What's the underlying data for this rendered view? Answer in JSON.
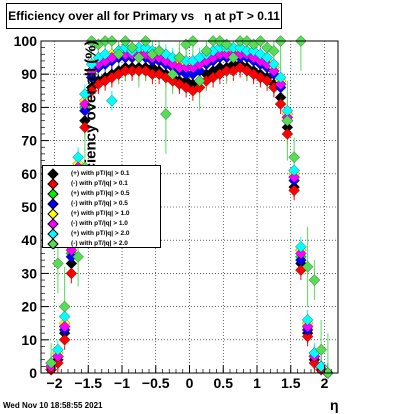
{
  "timestamp": "Wed Nov 10 18:58:55 2021",
  "chart_data": {
    "type": "scatter",
    "title": "Efficiency over all for Primary vs   η at pT > 0.11",
    "xlabel": "η",
    "ylabel": "Efficiency over all (%)",
    "xlim": [
      -2.2,
      2.2
    ],
    "ylim": [
      0,
      100
    ],
    "x_ticks": [
      -2,
      -1.5,
      -1,
      -0.5,
      0,
      0.5,
      1,
      1.5,
      2
    ],
    "x_tick_labels": [
      "−2",
      "−1.5",
      "−1",
      "−0.5",
      "0",
      "0.5",
      "1",
      "1.5",
      "2"
    ],
    "y_ticks": [
      0,
      10,
      20,
      30,
      40,
      50,
      60,
      70,
      80,
      90,
      100
    ],
    "y_tick_labels": [
      "0",
      "10",
      "20",
      "30",
      "40",
      "50",
      "60",
      "70",
      "80",
      "90",
      "100"
    ],
    "grid": true,
    "legend_position": "left-middle",
    "series": [
      {
        "name": "(+) with pT/|q| > 0.1",
        "color": "#000000",
        "x": [
          -2.05,
          -1.95,
          -1.85,
          -1.75,
          -1.65,
          -1.55,
          -1.45,
          -1.35,
          -1.25,
          -1.15,
          -1.05,
          -0.95,
          -0.85,
          -0.75,
          -0.65,
          -0.55,
          -0.45,
          -0.35,
          -0.25,
          -0.15,
          -0.05,
          0.05,
          0.15,
          0.25,
          0.35,
          0.45,
          0.55,
          0.65,
          0.75,
          0.85,
          0.95,
          1.05,
          1.15,
          1.25,
          1.35,
          1.45,
          1.55,
          1.65,
          1.75,
          1.85,
          1.95,
          2.05
        ],
        "y": [
          1,
          4,
          12,
          33,
          58,
          76,
          86,
          88,
          89,
          90,
          91,
          92,
          92,
          92,
          92,
          92,
          91,
          90,
          89,
          88,
          88,
          87,
          88,
          90,
          91,
          92,
          92,
          93,
          93,
          92,
          91,
          90,
          89,
          87,
          83,
          74,
          56,
          33,
          12,
          4,
          1,
          0
        ]
      },
      {
        "name": "(-) with pT/|q| > 0.1",
        "color": "#ff0000",
        "x": [
          -2.05,
          -1.95,
          -1.85,
          -1.75,
          -1.65,
          -1.55,
          -1.45,
          -1.35,
          -1.25,
          -1.15,
          -1.05,
          -0.95,
          -0.85,
          -0.75,
          -0.65,
          -0.55,
          -0.45,
          -0.35,
          -0.25,
          -0.15,
          -0.05,
          0.05,
          0.15,
          0.25,
          0.35,
          0.45,
          0.55,
          0.65,
          0.75,
          0.85,
          0.95,
          1.05,
          1.15,
          1.25,
          1.35,
          1.45,
          1.55,
          1.65,
          1.75,
          1.85,
          1.95,
          2.05
        ],
        "y": [
          1,
          3,
          10,
          30,
          55,
          74,
          85,
          87,
          88,
          89,
          90,
          91,
          91,
          91,
          91,
          90,
          90,
          89,
          88,
          87,
          86,
          85,
          86,
          88,
          89,
          90,
          91,
          91,
          92,
          91,
          90,
          89,
          88,
          86,
          81,
          72,
          55,
          31,
          11,
          3,
          1,
          0
        ]
      },
      {
        "name": "(+) with pT/|q| > 0.5",
        "color": "#00ee00",
        "x": [
          -2.05,
          -1.95,
          -1.85,
          -1.75,
          -1.65,
          -1.55,
          -1.45,
          -1.35,
          -1.25,
          -1.15,
          -1.05,
          -0.95,
          -0.85,
          -0.75,
          -0.65,
          -0.55,
          -0.45,
          -0.35,
          -0.25,
          -0.15,
          -0.05,
          0.05,
          0.15,
          0.25,
          0.35,
          0.45,
          0.55,
          0.65,
          0.75,
          0.85,
          0.95,
          1.05,
          1.15,
          1.25,
          1.35,
          1.45,
          1.55,
          1.65,
          1.75,
          1.85,
          1.95,
          2.05
        ],
        "y": [
          2,
          5,
          14,
          36,
          61,
          80,
          90,
          93,
          94,
          95,
          96,
          96,
          96,
          96,
          96,
          95,
          95,
          94,
          93,
          92,
          92,
          92,
          93,
          94,
          95,
          96,
          96,
          96,
          96,
          96,
          95,
          94,
          93,
          91,
          87,
          77,
          59,
          35,
          14,
          5,
          2,
          0
        ]
      },
      {
        "name": "(-) with pT/|q| > 0.5",
        "color": "#0000ff",
        "x": [
          -2.05,
          -1.95,
          -1.85,
          -1.75,
          -1.65,
          -1.55,
          -1.45,
          -1.35,
          -1.25,
          -1.15,
          -1.05,
          -0.95,
          -0.85,
          -0.75,
          -0.65,
          -0.55,
          -0.45,
          -0.35,
          -0.25,
          -0.15,
          -0.05,
          0.05,
          0.15,
          0.25,
          0.35,
          0.45,
          0.55,
          0.65,
          0.75,
          0.85,
          0.95,
          1.05,
          1.15,
          1.25,
          1.35,
          1.45,
          1.55,
          1.65,
          1.75,
          1.85,
          1.95,
          2.05
        ],
        "y": [
          2,
          5,
          13,
          35,
          60,
          79,
          89,
          92,
          93,
          94,
          95,
          95,
          95,
          95,
          95,
          94,
          94,
          93,
          92,
          91,
          90,
          90,
          91,
          93,
          94,
          95,
          95,
          95,
          95,
          95,
          94,
          93,
          92,
          90,
          86,
          76,
          58,
          34,
          13,
          5,
          2,
          0
        ]
      },
      {
        "name": "(+) with pT/|q| > 1.0",
        "color": "#ffff00",
        "x": [
          -2.05,
          -1.95,
          -1.85,
          -1.75,
          -1.65,
          -1.55,
          -1.45,
          -1.35,
          -1.25,
          -1.15,
          -1.05,
          -0.95,
          -0.85,
          -0.75,
          -0.65,
          -0.55,
          -0.45,
          -0.35,
          -0.25,
          -0.15,
          -0.05,
          0.05,
          0.15,
          0.25,
          0.35,
          0.45,
          0.55,
          0.65,
          0.75,
          0.85,
          0.95,
          1.05,
          1.15,
          1.25,
          1.35,
          1.45,
          1.55,
          1.65,
          1.75,
          1.85,
          1.95,
          2.05
        ],
        "y": [
          2,
          6,
          15,
          38,
          63,
          82,
          91,
          94,
          95,
          96,
          97,
          97,
          97,
          97,
          97,
          96,
          96,
          95,
          94,
          93,
          93,
          93,
          94,
          95,
          96,
          97,
          97,
          97,
          97,
          97,
          96,
          95,
          94,
          92,
          88,
          78,
          60,
          37,
          15,
          6,
          2,
          0
        ]
      },
      {
        "name": "(-) with pT/|q| > 1.0",
        "color": "#ff00ff",
        "x": [
          -2.05,
          -1.95,
          -1.85,
          -1.75,
          -1.65,
          -1.55,
          -1.45,
          -1.35,
          -1.25,
          -1.15,
          -1.05,
          -0.95,
          -0.85,
          -0.75,
          -0.65,
          -0.55,
          -0.45,
          -0.35,
          -0.25,
          -0.15,
          -0.05,
          0.05,
          0.15,
          0.25,
          0.35,
          0.45,
          0.55,
          0.65,
          0.75,
          0.85,
          0.95,
          1.05,
          1.15,
          1.25,
          1.35,
          1.45,
          1.55,
          1.65,
          1.75,
          1.85,
          1.95,
          2.05
        ],
        "y": [
          2,
          5,
          14,
          37,
          62,
          81,
          91,
          93,
          94,
          95,
          96,
          96,
          96,
          96,
          96,
          95,
          95,
          94,
          93,
          92,
          92,
          92,
          93,
          94,
          95,
          96,
          96,
          96,
          96,
          96,
          95,
          94,
          93,
          91,
          87,
          77,
          59,
          36,
          14,
          5,
          2,
          0
        ]
      },
      {
        "name": "(+) with pT/|q| > 2.0",
        "color": "#00ffff",
        "x": [
          -2.05,
          -1.95,
          -1.85,
          -1.75,
          -1.65,
          -1.55,
          -1.45,
          -1.35,
          -1.25,
          -1.15,
          -1.05,
          -0.95,
          -0.85,
          -0.75,
          -0.65,
          -0.55,
          -0.45,
          -0.35,
          -0.25,
          -0.15,
          -0.05,
          0.05,
          0.15,
          0.25,
          0.35,
          0.45,
          0.55,
          0.65,
          0.75,
          0.85,
          0.95,
          1.05,
          1.15,
          1.25,
          1.35,
          1.45,
          1.55,
          1.65,
          1.75,
          1.85,
          1.95,
          2.05
        ],
        "y": [
          3,
          7,
          17,
          40,
          65,
          84,
          93,
          95,
          96,
          82,
          97,
          98,
          97,
          98,
          98,
          97,
          97,
          96,
          95,
          95,
          94,
          94,
          95,
          96,
          97,
          98,
          98,
          98,
          98,
          97,
          97,
          96,
          95,
          93,
          89,
          79,
          61,
          38,
          16,
          6,
          2,
          0
        ]
      },
      {
        "name": "(-) with pT/|q| > 2.0",
        "color": "#55dd55",
        "x": [
          -2.05,
          -1.95,
          -1.85,
          -1.75,
          -1.65,
          -1.55,
          -1.45,
          -1.35,
          -1.25,
          -1.15,
          -1.05,
          -0.95,
          -0.85,
          -0.75,
          -0.65,
          -0.55,
          -0.45,
          -0.35,
          -0.25,
          -0.15,
          -0.05,
          0.05,
          0.15,
          0.25,
          0.35,
          0.45,
          0.55,
          0.65,
          0.75,
          0.85,
          0.95,
          1.05,
          1.15,
          1.25,
          1.35,
          1.45,
          1.55,
          1.65,
          1.75,
          1.85,
          1.95,
          2.05
        ],
        "y": [
          3,
          33,
          20,
          45,
          35,
          62,
          100,
          99,
          100,
          100,
          96,
          100,
          98,
          95,
          100,
          96,
          97,
          78,
          90,
          95,
          99,
          100,
          88,
          97,
          100,
          100,
          99,
          95,
          100,
          100,
          99,
          100,
          98,
          97,
          100,
          76,
          65,
          100,
          32,
          28,
          7,
          0
        ]
      }
    ]
  }
}
